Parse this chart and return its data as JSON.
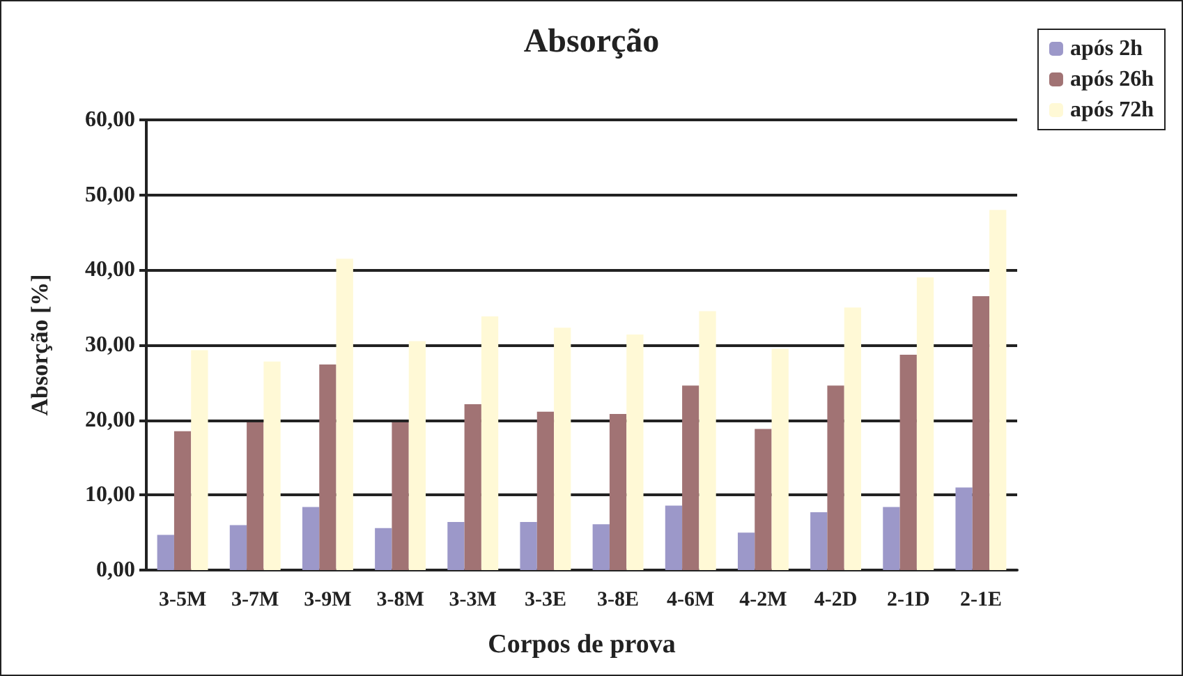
{
  "chart_data": {
    "type": "bar",
    "title": "Absorção",
    "xlabel": "Corpos de prova",
    "ylabel": "Absorção [%]",
    "categories": [
      "3-5M",
      "3-7M",
      "3-9M",
      "3-8M",
      "3-3M",
      "3-3E",
      "3-8E",
      "4-6M",
      "4-2M",
      "4-2D",
      "2-1D",
      "2-1E"
    ],
    "series": [
      {
        "name": "após 2h",
        "color": "#9c98c9",
        "values": [
          4.7,
          6.0,
          8.4,
          5.6,
          6.4,
          6.4,
          6.1,
          8.6,
          5.0,
          7.7,
          8.4,
          11.0
        ]
      },
      {
        "name": "após 26h",
        "color": "#a17374",
        "values": [
          18.5,
          19.7,
          27.4,
          19.7,
          22.1,
          21.1,
          20.8,
          24.6,
          18.8,
          24.6,
          28.7,
          36.5
        ]
      },
      {
        "name": "após 72h",
        "color": "#fff9d6",
        "values": [
          29.3,
          27.8,
          41.5,
          30.5,
          33.8,
          32.3,
          31.4,
          34.5,
          29.5,
          35.0,
          39.0,
          48.0
        ]
      }
    ],
    "ylim": [
      0,
      60
    ],
    "yticks": [
      {
        "value": 0,
        "label": "0,00"
      },
      {
        "value": 10,
        "label": "10,00"
      },
      {
        "value": 20,
        "label": "20,00"
      },
      {
        "value": 30,
        "label": "30,00"
      },
      {
        "value": 40,
        "label": "40,00"
      },
      {
        "value": 50,
        "label": "50,00"
      },
      {
        "value": 60,
        "label": "60,00"
      }
    ],
    "grid": "y",
    "legend": "top right"
  }
}
